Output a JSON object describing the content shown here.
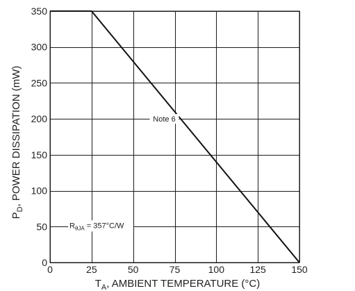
{
  "chart_data": {
    "type": "line",
    "xlabel_main": "T",
    "xlabel_sub": "A",
    "xlabel_rest": ", AMBIENT TEMPERATURE (°C)",
    "ylabel_main": "P",
    "ylabel_sub": "D",
    "ylabel_rest": ", POWER DISSIPATION (mW)",
    "xlim": [
      0,
      150
    ],
    "ylim": [
      0,
      350
    ],
    "xticks": [
      0,
      25,
      50,
      75,
      100,
      125,
      150
    ],
    "yticks": [
      0,
      50,
      100,
      150,
      200,
      250,
      300,
      350
    ],
    "grid": true,
    "series": [
      {
        "x": [
          0,
          25,
          150
        ],
        "y": [
          350,
          350,
          0
        ]
      }
    ],
    "annotations": [
      {
        "text": "Note 6",
        "x": 75,
        "y": 200
      },
      {
        "text_main": "R",
        "text_sub": "θJA",
        "text_rest": " = 357°C/W",
        "x": 25,
        "y": 50
      }
    ],
    "colors": {
      "line": "#111111",
      "grid": "#1a1a1a",
      "text": "#222222"
    }
  }
}
